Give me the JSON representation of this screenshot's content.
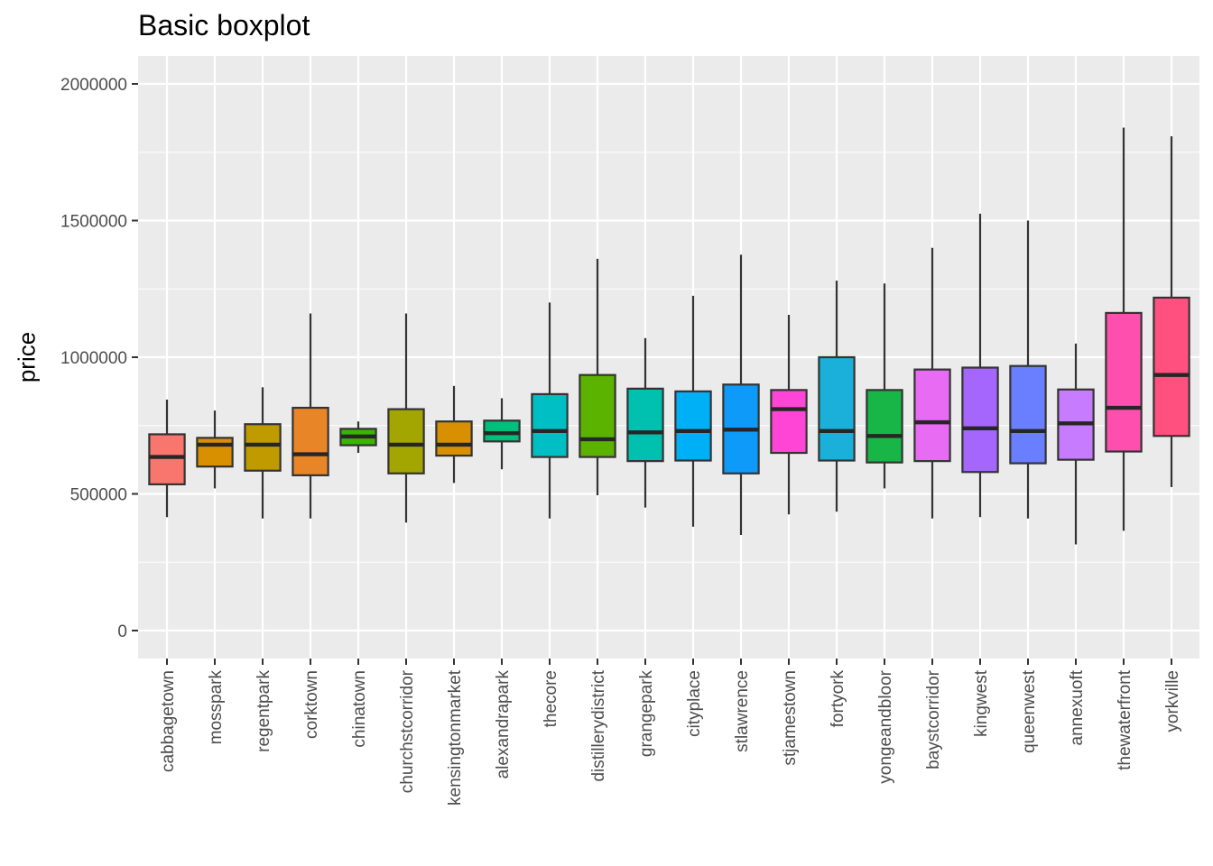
{
  "chart_data": {
    "type": "boxplot",
    "title": "Basic boxplot",
    "xlabel": "",
    "ylabel": "price",
    "ylim": [
      -100000,
      2100000
    ],
    "yticks": [
      {
        "value": 0,
        "label": "0"
      },
      {
        "value": 500000,
        "label": "500000"
      },
      {
        "value": 1000000,
        "label": "1000000"
      },
      {
        "value": 1500000,
        "label": "1500000"
      },
      {
        "value": 2000000,
        "label": "2000000"
      }
    ],
    "grid": true,
    "legend": "none",
    "categories": [
      "cabbagetown",
      "mosspark",
      "regentpark",
      "corktown",
      "chinatown",
      "churchstcorridor",
      "kensingtonmarket",
      "alexandrapark",
      "thecore",
      "distillerydistrict",
      "grangepark",
      "cityplace",
      "stlawrence",
      "stjamestown",
      "fortyork",
      "yongeandbloor",
      "baystcorridor",
      "kingwest",
      "queenwest",
      "annexuoft",
      "thewaterfront",
      "yorkville"
    ],
    "boxes": [
      {
        "category": "cabbagetown",
        "color": "#F8766D",
        "min": 415000,
        "q1": 535000,
        "median": 635000,
        "q3": 718000,
        "max": 845000
      },
      {
        "category": "mosspark",
        "color": "#D89000",
        "min": 520000,
        "q1": 600000,
        "median": 680000,
        "q3": 705000,
        "max": 805000
      },
      {
        "category": "regentpark",
        "color": "#BF9B00",
        "min": 410000,
        "q1": 585000,
        "median": 680000,
        "q3": 755000,
        "max": 890000
      },
      {
        "category": "corktown",
        "color": "#E88526",
        "min": 410000,
        "q1": 568000,
        "median": 645000,
        "q3": 815000,
        "max": 1160000
      },
      {
        "category": "chinatown",
        "color": "#39B600",
        "min": 650000,
        "q1": 678000,
        "median": 710000,
        "q3": 738000,
        "max": 765000
      },
      {
        "category": "churchstcorridor",
        "color": "#A3A500",
        "min": 395000,
        "q1": 575000,
        "median": 680000,
        "q3": 810000,
        "max": 1160000
      },
      {
        "category": "kensingtonmarket",
        "color": "#D89000",
        "min": 540000,
        "q1": 640000,
        "median": 680000,
        "q3": 765000,
        "max": 895000
      },
      {
        "category": "alexandrapark",
        "color": "#00BF7D",
        "min": 590000,
        "q1": 692000,
        "median": 722000,
        "q3": 768000,
        "max": 850000
      },
      {
        "category": "thecore",
        "color": "#00BFC4",
        "min": 410000,
        "q1": 635000,
        "median": 730000,
        "q3": 865000,
        "max": 1200000
      },
      {
        "category": "distillerydistrict",
        "color": "#5BB300",
        "min": 495000,
        "q1": 635000,
        "median": 700000,
        "q3": 935000,
        "max": 1360000
      },
      {
        "category": "grangepark",
        "color": "#00C0AF",
        "min": 450000,
        "q1": 620000,
        "median": 725000,
        "q3": 885000,
        "max": 1070000
      },
      {
        "category": "cityplace",
        "color": "#00B0F6",
        "min": 380000,
        "q1": 622000,
        "median": 730000,
        "q3": 875000,
        "max": 1225000
      },
      {
        "category": "stlawrence",
        "color": "#0E9AF8",
        "min": 350000,
        "q1": 575000,
        "median": 735000,
        "q3": 900000,
        "max": 1375000
      },
      {
        "category": "stjamestown",
        "color": "#FF45D6",
        "min": 425000,
        "q1": 650000,
        "median": 810000,
        "q3": 880000,
        "max": 1155000
      },
      {
        "category": "fortyork",
        "color": "#1AB0DA",
        "min": 435000,
        "q1": 622000,
        "median": 730000,
        "q3": 1000000,
        "max": 1280000
      },
      {
        "category": "yongeandbloor",
        "color": "#17B647",
        "min": 520000,
        "q1": 615000,
        "median": 712000,
        "q3": 880000,
        "max": 1270000
      },
      {
        "category": "baystcorridor",
        "color": "#E76BF3",
        "min": 410000,
        "q1": 620000,
        "median": 762000,
        "q3": 955000,
        "max": 1400000
      },
      {
        "category": "kingwest",
        "color": "#A566FB",
        "min": 415000,
        "q1": 580000,
        "median": 740000,
        "q3": 962000,
        "max": 1525000
      },
      {
        "category": "queenwest",
        "color": "#6A7FFF",
        "min": 410000,
        "q1": 612000,
        "median": 730000,
        "q3": 968000,
        "max": 1500000
      },
      {
        "category": "annexuoft",
        "color": "#C77CFF",
        "min": 315000,
        "q1": 625000,
        "median": 758000,
        "q3": 882000,
        "max": 1050000
      },
      {
        "category": "thewaterfront",
        "color": "#FF4FAE",
        "min": 365000,
        "q1": 655000,
        "median": 815000,
        "q3": 1162000,
        "max": 1840000
      },
      {
        "category": "yorkville",
        "color": "#FF5080",
        "min": 525000,
        "q1": 712000,
        "median": 935000,
        "q3": 1218000,
        "max": 1808000
      }
    ]
  }
}
